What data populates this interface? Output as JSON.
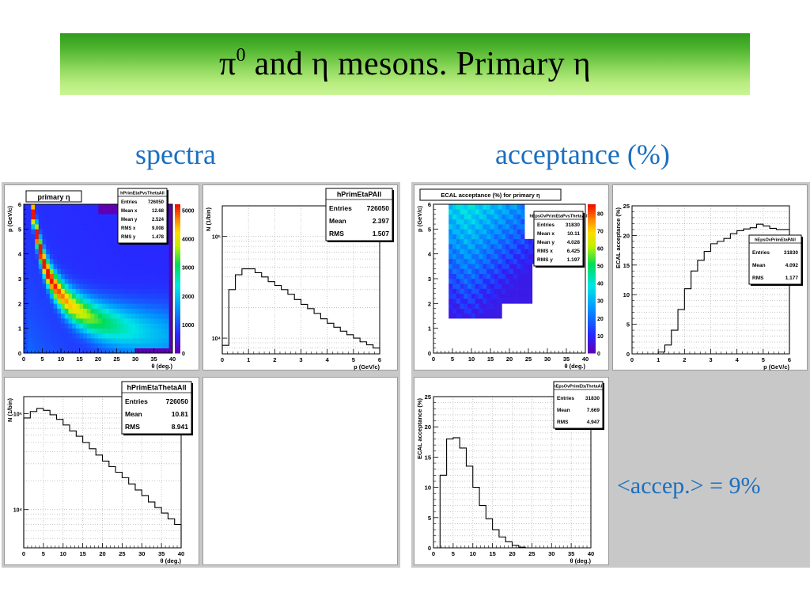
{
  "slide": {
    "title_prefix": "π",
    "title_sup": "0",
    "title_rest": " and η mesons. Primary η",
    "left_heading": "spectra",
    "right_heading": "acceptance (%)",
    "acceptance_note": "<accep.> = 9%"
  },
  "chart_data": [
    {
      "type": "heatmap",
      "name": "hPrimEtaPvsThetaAll",
      "title": "primary η",
      "xlabel": "θ (deg.)",
      "ylabel": "p (GeV/c)",
      "xlim": [
        0,
        40
      ],
      "ylim": [
        0,
        6
      ],
      "xticks": [
        "0",
        "5",
        "10",
        "15",
        "20",
        "25",
        "30",
        "35",
        "40"
      ],
      "yticks": [
        "0",
        "1",
        "2",
        "3",
        "4",
        "5",
        "6"
      ],
      "palette_ticks": [
        "0",
        "1000",
        "2000",
        "3000",
        "4000",
        "5000"
      ],
      "stats": {
        "name": "hPrimEtaPvsThetaAll",
        "rows": [
          [
            "Entries",
            "726050"
          ],
          [
            "Mean x",
            "12.68"
          ],
          [
            "Mean y",
            "2.524"
          ],
          [
            "RMS x",
            "9.008"
          ],
          [
            "RMS y",
            "1.478"
          ]
        ]
      }
    },
    {
      "type": "line",
      "name": "hPrimEtaPAll",
      "xlabel": "p (GeV/c)",
      "ylabel": "N (1/bin)",
      "log_y": true,
      "xlim": [
        0,
        6
      ],
      "ylim": [
        7000,
        200000
      ],
      "xticks": [
        "0",
        "1",
        "2",
        "3",
        "4",
        "5",
        "6"
      ],
      "yticks": [
        {
          "v": 10000,
          "label": "10⁴"
        },
        {
          "v": 100000,
          "label": "10⁵"
        }
      ],
      "x": [
        0,
        0.25,
        0.5,
        0.75,
        1.0,
        1.25,
        1.5,
        1.75,
        2.0,
        2.25,
        2.5,
        2.75,
        3.0,
        3.25,
        3.5,
        3.75,
        4.0,
        4.25,
        4.5,
        4.75,
        5.0,
        5.25,
        5.5,
        5.75
      ],
      "values": [
        8500,
        30000,
        42000,
        48000,
        48000,
        44000,
        40000,
        36000,
        33000,
        30000,
        27000,
        24000,
        21500,
        19500,
        17500,
        15500,
        14000,
        12800,
        11700,
        10800,
        10000,
        9200,
        8600,
        8000
      ],
      "stats": {
        "name": "hPrimEtaPAll",
        "rows": [
          [
            "Entries",
            "726050"
          ],
          [
            "Mean",
            "2.397"
          ],
          [
            "RMS",
            "1.507"
          ]
        ]
      }
    },
    {
      "type": "heatmap",
      "name": "hEpsOvPrimEtaPvsThetaAll",
      "title": "ECAL acceptance (%) for primary η",
      "xlabel": "θ (deg.)",
      "ylabel": "p (GeV/c)",
      "xlim": [
        0,
        40
      ],
      "ylim": [
        0,
        6
      ],
      "xticks": [
        "0",
        "5",
        "10",
        "15",
        "20",
        "25",
        "30",
        "35",
        "40"
      ],
      "yticks": [
        "0",
        "1",
        "2",
        "3",
        "4",
        "5",
        "6"
      ],
      "palette_ticks": [
        "0",
        "10",
        "20",
        "30",
        "40",
        "50",
        "60",
        "70",
        "80"
      ],
      "stats": {
        "name": "hEpsOvPrimEtaPvsThetaAll",
        "rows": [
          [
            "Entries",
            "31830"
          ],
          [
            "Mean x",
            "10.11"
          ],
          [
            "Mean y",
            "4.028"
          ],
          [
            "RMS x",
            "6.425"
          ],
          [
            "RMS y",
            "1.197"
          ]
        ]
      }
    },
    {
      "type": "line",
      "name": "hEpsOvPrimEtaPAll",
      "xlabel": "p (GeV/c)",
      "ylabel": "ECAL acceptance (%)",
      "xlim": [
        0,
        6
      ],
      "ylim": [
        0,
        25
      ],
      "xticks": [
        "0",
        "1",
        "2",
        "3",
        "4",
        "5",
        "6"
      ],
      "yticks": [
        "0",
        "5",
        "10",
        "15",
        "20",
        "25"
      ],
      "x": [
        0,
        0.25,
        0.5,
        0.75,
        1.0,
        1.25,
        1.5,
        1.75,
        2.0,
        2.25,
        2.5,
        2.75,
        3.0,
        3.25,
        3.5,
        3.75,
        4.0,
        4.25,
        4.5,
        4.75,
        5.0,
        5.25,
        5.5,
        5.75
      ],
      "values": [
        0,
        0,
        0,
        0,
        0.3,
        1.5,
        4,
        7.5,
        11,
        14,
        15.8,
        17.3,
        18.6,
        19,
        19.5,
        20.3,
        20.8,
        21.1,
        21.3,
        21.9,
        21.6,
        21.2,
        21,
        21
      ],
      "stats": {
        "name": "hEpsOvPrimEtaPAll",
        "rows": [
          [
            "Entries",
            "31830"
          ],
          [
            "Mean",
            "4.092"
          ],
          [
            "RMS",
            "1.177"
          ]
        ]
      }
    },
    {
      "type": "line",
      "name": "hPrimEtaThetaAll",
      "xlabel": "θ (deg.)",
      "ylabel": "N (1/bin)",
      "log_y": true,
      "xlim": [
        0,
        40
      ],
      "ylim": [
        4000,
        150000
      ],
      "xticks": [
        "0",
        "5",
        "10",
        "15",
        "20",
        "25",
        "30",
        "35",
        "40"
      ],
      "yticks": [
        {
          "v": 10000,
          "label": "10⁴"
        },
        {
          "v": 100000,
          "label": "10⁵"
        }
      ],
      "x": [
        0,
        1.67,
        3.33,
        5,
        6.67,
        8.33,
        10,
        11.67,
        13.33,
        15,
        16.67,
        18.33,
        20,
        21.67,
        23.33,
        25,
        26.67,
        28.33,
        30,
        31.67,
        33.33,
        35,
        36.67,
        38.33
      ],
      "values": [
        90000,
        105000,
        113000,
        108000,
        97000,
        87000,
        76000,
        66000,
        58000,
        50000,
        43000,
        37000,
        32000,
        28000,
        24500,
        21500,
        18500,
        16000,
        14000,
        12000,
        10500,
        9200,
        8000,
        7000
      ],
      "stats": {
        "name": "hPrimEtaThetaAll",
        "rows": [
          [
            "Entries",
            "726050"
          ],
          [
            "Mean",
            "10.81"
          ],
          [
            "RMS",
            "8.941"
          ]
        ]
      }
    },
    {
      "type": "line",
      "name": "hEpsOvPrimEtaThetaAll",
      "xlabel": "θ (deg.)",
      "ylabel": "ECAL acceptance (%)",
      "xlim": [
        0,
        40
      ],
      "ylim": [
        0,
        25
      ],
      "xticks": [
        "0",
        "5",
        "10",
        "15",
        "20",
        "25",
        "30",
        "35",
        "40"
      ],
      "yticks": [
        "0",
        "5",
        "10",
        "15",
        "20",
        "25"
      ],
      "x": [
        0,
        1.67,
        3.33,
        5,
        6.67,
        8.33,
        10,
        11.67,
        13.33,
        15,
        16.67,
        18.33,
        20,
        21.67,
        23.33,
        25,
        26.67,
        28.33,
        30,
        31.67,
        33.33,
        35,
        36.67,
        38.33
      ],
      "values": [
        0,
        12,
        18,
        18.2,
        16.5,
        13.5,
        10,
        7,
        4.8,
        3,
        1.8,
        1,
        0.4,
        0.1,
        0,
        0,
        0,
        0,
        0,
        0,
        0,
        0,
        0,
        0
      ],
      "stats": {
        "name": "hEpsOvPrimEtaThetaAll",
        "rows": [
          [
            "Entries",
            "31830"
          ],
          [
            "Mean",
            "7.669"
          ],
          [
            "RMS",
            "4.947"
          ]
        ]
      }
    }
  ]
}
